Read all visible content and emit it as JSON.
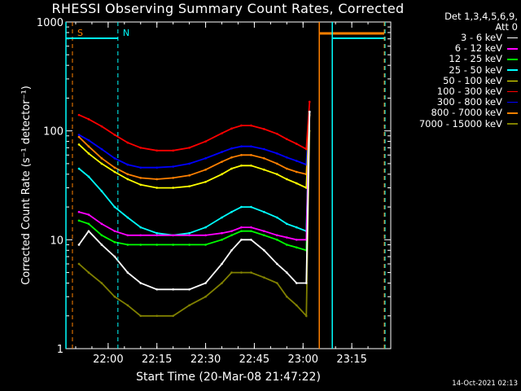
{
  "title": "RHESSI Observing Summary Count Rates, Corrected",
  "footer_date": "14-Oct-2021 02:13",
  "legend": {
    "header_line1": "Det 1,3,4,5,6,9,",
    "header_line2": "Att 0"
  },
  "chart_data": {
    "type": "line",
    "title": "RHESSI Observing Summary Count Rates, Corrected",
    "xlabel": "Start Time (20-Mar-08 21:47:22)",
    "ylabel": "Corrected Count Rate (s⁻¹ detector⁻¹)",
    "y_scale": "log",
    "ylim": [
      1,
      1000
    ],
    "xlim": [
      "21:47",
      "23:27"
    ],
    "x_ticks": [
      "22:00",
      "22:15",
      "22:30",
      "22:45",
      "23:00",
      "23:15"
    ],
    "y_ticks": [
      "1",
      "10",
      "100",
      "1000"
    ],
    "grid": false,
    "legend_position": "top-right",
    "series": [
      {
        "name": "3 - 6 keV",
        "color": "#ffffff",
        "x": [
          "21:51",
          "21:54",
          "21:58",
          "22:02",
          "22:06",
          "22:10",
          "22:15",
          "22:20",
          "22:25",
          "22:30",
          "22:35",
          "22:38",
          "22:41",
          "22:44",
          "22:48",
          "22:52",
          "22:55",
          "22:58",
          "23:01",
          "23:02"
        ],
        "y": [
          9,
          12,
          9,
          7,
          5,
          4,
          3.5,
          3.5,
          3.5,
          4,
          6,
          8,
          10,
          10,
          8,
          6,
          5,
          4,
          4,
          150
        ]
      },
      {
        "name": "6 - 12 keV",
        "color": "#ff00ff",
        "x": [
          "21:51",
          "21:54",
          "21:58",
          "22:02",
          "22:06",
          "22:10",
          "22:15",
          "22:20",
          "22:25",
          "22:30",
          "22:35",
          "22:38",
          "22:41",
          "22:44",
          "22:48",
          "22:52",
          "22:55",
          "22:58",
          "23:01",
          "23:02"
        ],
        "y": [
          18,
          17,
          14,
          12,
          11,
          11,
          11,
          11,
          11,
          11,
          11.5,
          12,
          13,
          13,
          12,
          11,
          10.5,
          10,
          10,
          150
        ]
      },
      {
        "name": "12 - 25 keV",
        "color": "#00ff00",
        "x": [
          "21:51",
          "21:54",
          "21:58",
          "22:02",
          "22:06",
          "22:10",
          "22:15",
          "22:20",
          "22:25",
          "22:30",
          "22:35",
          "22:38",
          "22:41",
          "22:44",
          "22:48",
          "22:52",
          "22:55",
          "22:58",
          "23:01",
          "23:02"
        ],
        "y": [
          15,
          14,
          11,
          9.5,
          9,
          9,
          9,
          9,
          9,
          9,
          10,
          11,
          12,
          12,
          11,
          10,
          9,
          8.5,
          8,
          150
        ]
      },
      {
        "name": "25 - 50 keV",
        "color": "#00ffff",
        "x": [
          "21:51",
          "21:54",
          "21:58",
          "22:02",
          "22:06",
          "22:10",
          "22:15",
          "22:20",
          "22:25",
          "22:30",
          "22:35",
          "22:38",
          "22:41",
          "22:44",
          "22:48",
          "22:52",
          "22:55",
          "22:58",
          "23:01",
          "23:02"
        ],
        "y": [
          45,
          38,
          28,
          20,
          16,
          13,
          11.5,
          11,
          11.5,
          13,
          16,
          18,
          20,
          20,
          18,
          16,
          14,
          13,
          12,
          150
        ]
      },
      {
        "name": "50 - 100 keV",
        "color": "#ffff00",
        "x": [
          "21:51",
          "21:54",
          "21:58",
          "22:02",
          "22:06",
          "22:10",
          "22:15",
          "22:20",
          "22:25",
          "22:30",
          "22:35",
          "22:38",
          "22:41",
          "22:44",
          "22:48",
          "22:52",
          "22:55",
          "22:58",
          "23:01",
          "23:02"
        ],
        "y": [
          75,
          62,
          50,
          42,
          36,
          32,
          30,
          30,
          31,
          34,
          40,
          45,
          48,
          48,
          44,
          40,
          36,
          33,
          30,
          150
        ]
      },
      {
        "name": "100 - 300 keV",
        "color": "#ff0000",
        "x": [
          "21:51",
          "21:54",
          "21:58",
          "22:02",
          "22:06",
          "22:10",
          "22:15",
          "22:20",
          "22:25",
          "22:30",
          "22:35",
          "22:38",
          "22:41",
          "22:44",
          "22:48",
          "22:52",
          "22:55",
          "22:58",
          "23:01",
          "23:02"
        ],
        "y": [
          140,
          128,
          110,
          92,
          78,
          70,
          66,
          66,
          70,
          80,
          95,
          105,
          112,
          112,
          104,
          94,
          84,
          76,
          68,
          185
        ]
      },
      {
        "name": "300 - 800 keV",
        "color": "#0000ff",
        "x": [
          "21:51",
          "21:54",
          "21:58",
          "22:02",
          "22:06",
          "22:10",
          "22:15",
          "22:20",
          "22:25",
          "22:30",
          "22:35",
          "22:38",
          "22:41",
          "22:44",
          "22:48",
          "22:52",
          "22:55",
          "22:58",
          "23:01",
          "23:02"
        ],
        "y": [
          92,
          82,
          68,
          56,
          49,
          46,
          46,
          47,
          50,
          56,
          64,
          69,
          72,
          72,
          68,
          62,
          57,
          53,
          49,
          150
        ]
      },
      {
        "name": "800 - 7000 keV",
        "color": "#ff8000",
        "x": [
          "21:51",
          "21:54",
          "21:58",
          "22:02",
          "22:06",
          "22:10",
          "22:15",
          "22:20",
          "22:25",
          "22:30",
          "22:35",
          "22:38",
          "22:41",
          "22:44",
          "22:48",
          "22:52",
          "22:55",
          "22:58",
          "23:01",
          "23:02"
        ],
        "y": [
          88,
          72,
          56,
          46,
          40,
          37,
          36,
          37,
          39,
          44,
          52,
          57,
          60,
          60,
          56,
          50,
          45,
          42,
          40,
          140
        ]
      },
      {
        "name": "7000 - 15000 keV",
        "color": "#808000",
        "x": [
          "21:51",
          "21:54",
          "21:58",
          "22:02",
          "22:06",
          "22:10",
          "22:15",
          "22:20",
          "22:25",
          "22:30",
          "22:35",
          "22:38",
          "22:41",
          "22:44",
          "22:48",
          "22:52",
          "22:55",
          "22:58",
          "23:01",
          "23:02"
        ],
        "y": [
          6,
          5,
          4,
          3,
          2.5,
          2,
          2,
          2,
          2.5,
          3,
          4,
          5,
          5,
          5,
          4.5,
          4,
          3,
          2.5,
          2,
          100
        ]
      }
    ],
    "annotations": [
      {
        "label": "S",
        "color": "#ff8000",
        "x": "21:49"
      },
      {
        "label": "N",
        "color": "#00ffff",
        "x": "22:03"
      }
    ]
  }
}
